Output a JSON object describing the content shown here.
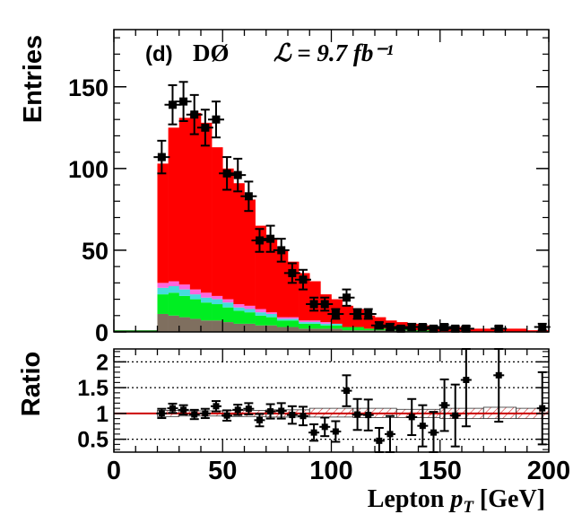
{
  "chart_data": {
    "type": "bar",
    "stacked": true,
    "top_panel": {
      "ylabel": "Entries",
      "ylim": [
        0,
        185
      ],
      "yticks": [
        "0",
        "50",
        "100",
        "150"
      ],
      "label_panel": "(d)",
      "label_experiment": "DØ",
      "label_lumi": "ℒ = 9.7 fb⁻¹",
      "bins": [
        [
          20,
          25
        ],
        [
          25,
          30
        ],
        [
          30,
          35
        ],
        [
          35,
          40
        ],
        [
          40,
          45
        ],
        [
          45,
          50
        ],
        [
          50,
          55
        ],
        [
          55,
          60
        ],
        [
          60,
          65
        ],
        [
          65,
          70
        ],
        [
          70,
          75
        ],
        [
          75,
          80
        ],
        [
          80,
          85
        ],
        [
          85,
          90
        ],
        [
          90,
          95
        ],
        [
          95,
          100
        ],
        [
          100,
          105
        ],
        [
          105,
          110
        ],
        [
          110,
          115
        ],
        [
          115,
          120
        ],
        [
          120,
          125
        ],
        [
          125,
          130
        ],
        [
          130,
          135
        ],
        [
          135,
          140
        ],
        [
          140,
          145
        ],
        [
          145,
          150
        ],
        [
          150,
          155
        ],
        [
          155,
          160
        ],
        [
          160,
          165
        ],
        [
          165,
          170
        ],
        [
          170,
          175
        ],
        [
          175,
          180
        ],
        [
          180,
          185
        ],
        [
          185,
          190
        ],
        [
          190,
          195
        ],
        [
          195,
          200
        ]
      ],
      "series": [
        {
          "color": "#7f6f5f",
          "values": [
            11,
            10,
            9,
            8,
            7,
            7,
            6,
            5,
            5,
            4,
            4,
            3,
            3,
            2,
            2,
            2,
            2,
            1,
            1,
            1,
            1,
            1,
            1,
            0,
            0,
            0,
            0,
            0,
            0,
            0,
            0,
            0,
            0,
            0,
            0,
            0
          ]
        },
        {
          "color": "#00ee22",
          "values": [
            12,
            14,
            13,
            12,
            11,
            10,
            9,
            8,
            7,
            6,
            5,
            4,
            4,
            3,
            3,
            2,
            2,
            2,
            2,
            1,
            1,
            1,
            1,
            1,
            1,
            0,
            0,
            0,
            0,
            0,
            0,
            0,
            0,
            0,
            0,
            0
          ]
        },
        {
          "color": "#44dddd",
          "values": [
            4,
            4,
            4,
            3,
            3,
            3,
            3,
            2,
            2,
            2,
            2,
            1,
            1,
            1,
            1,
            1,
            1,
            0,
            0,
            0,
            0,
            0,
            0,
            0,
            0,
            0,
            0,
            0,
            0,
            0,
            0,
            0,
            0,
            0,
            0,
            0
          ]
        },
        {
          "color": "#ff66dd",
          "values": [
            3,
            3,
            3,
            3,
            3,
            2,
            2,
            2,
            2,
            2,
            1,
            1,
            1,
            1,
            1,
            1,
            0,
            0,
            0,
            0,
            0,
            0,
            0,
            0,
            0,
            0,
            0,
            0,
            0,
            0,
            0,
            0,
            0,
            0,
            0,
            0
          ]
        },
        {
          "color": "#ff0000",
          "values": [
            73,
            94,
            102,
            108,
            104,
            91,
            80,
            74,
            65,
            51,
            45,
            41,
            34,
            29,
            24,
            17,
            15,
            13,
            11,
            8,
            7,
            5,
            4,
            4,
            3,
            3,
            3,
            3,
            2,
            2,
            2,
            2,
            2,
            2,
            1,
            1
          ]
        }
      ],
      "data_points": [
        {
          "x": 22,
          "y": 107,
          "err": 10
        },
        {
          "x": 27,
          "y": 139,
          "err": 12
        },
        {
          "x": 32,
          "y": 141,
          "err": 12
        },
        {
          "x": 37,
          "y": 133,
          "err": 12
        },
        {
          "x": 42,
          "y": 125,
          "err": 11
        },
        {
          "x": 47,
          "y": 130,
          "err": 11
        },
        {
          "x": 52,
          "y": 97,
          "err": 10
        },
        {
          "x": 57,
          "y": 96,
          "err": 10
        },
        {
          "x": 62,
          "y": 83,
          "err": 9
        },
        {
          "x": 67,
          "y": 56,
          "err": 7
        },
        {
          "x": 72,
          "y": 57,
          "err": 8
        },
        {
          "x": 77,
          "y": 50,
          "err": 7
        },
        {
          "x": 82,
          "y": 36,
          "err": 6
        },
        {
          "x": 87,
          "y": 32,
          "err": 6
        },
        {
          "x": 92,
          "y": 17,
          "err": 4
        },
        {
          "x": 97,
          "y": 17,
          "err": 4
        },
        {
          "x": 102,
          "y": 11,
          "err": 3
        },
        {
          "x": 107,
          "y": 21,
          "err": 5
        },
        {
          "x": 112,
          "y": 11,
          "err": 3
        },
        {
          "x": 117,
          "y": 11,
          "err": 3
        },
        {
          "x": 122,
          "y": 4,
          "err": 2
        },
        {
          "x": 127,
          "y": 3,
          "err": 2
        },
        {
          "x": 132,
          "y": 2,
          "err": 1.5
        },
        {
          "x": 137,
          "y": 3,
          "err": 2
        },
        {
          "x": 142,
          "y": 3,
          "err": 1.5
        },
        {
          "x": 147,
          "y": 2,
          "err": 1.5
        },
        {
          "x": 152,
          "y": 3,
          "err": 1.5
        },
        {
          "x": 157,
          "y": 2,
          "err": 1.5
        },
        {
          "x": 162,
          "y": 2,
          "err": 1.5
        },
        {
          "x": 177,
          "y": 2,
          "err": 1.5
        },
        {
          "x": 197,
          "y": 3,
          "err": 2
        }
      ]
    },
    "ratio_panel": {
      "ylabel": "Ratio",
      "ylim": [
        0.25,
        2.25
      ],
      "yticks": [
        "0.5",
        "1",
        "1.5",
        "2"
      ],
      "reference_line": 1,
      "dotted_lines": [
        0.5,
        1.5,
        2
      ],
      "points": [
        {
          "x": 22,
          "y": 1.0,
          "err": 0.09
        },
        {
          "x": 27,
          "y": 1.1,
          "err": 0.09
        },
        {
          "x": 32,
          "y": 1.07,
          "err": 0.09
        },
        {
          "x": 37,
          "y": 0.98,
          "err": 0.09
        },
        {
          "x": 42,
          "y": 1.0,
          "err": 0.09
        },
        {
          "x": 47,
          "y": 1.14,
          "err": 0.1
        },
        {
          "x": 52,
          "y": 0.96,
          "err": 0.1
        },
        {
          "x": 57,
          "y": 1.07,
          "err": 0.1
        },
        {
          "x": 62,
          "y": 1.09,
          "err": 0.11
        },
        {
          "x": 67,
          "y": 0.87,
          "err": 0.12
        },
        {
          "x": 72,
          "y": 1.04,
          "err": 0.14
        },
        {
          "x": 77,
          "y": 1.05,
          "err": 0.15
        },
        {
          "x": 82,
          "y": 0.97,
          "err": 0.17
        },
        {
          "x": 87,
          "y": 0.95,
          "err": 0.18
        },
        {
          "x": 92,
          "y": 0.63,
          "err": 0.16
        },
        {
          "x": 97,
          "y": 0.74,
          "err": 0.18
        },
        {
          "x": 102,
          "y": 0.65,
          "err": 0.2
        },
        {
          "x": 107,
          "y": 1.44,
          "err": 0.3
        },
        {
          "x": 112,
          "y": 0.98,
          "err": 0.3
        },
        {
          "x": 117,
          "y": 0.97,
          "err": 0.3
        },
        {
          "x": 122,
          "y": 0.47,
          "err": 0.25
        },
        {
          "x": 127,
          "y": 0.6,
          "err": 0.35
        },
        {
          "x": 137,
          "y": 0.93,
          "err": 0.35
        },
        {
          "x": 142,
          "y": 0.76,
          "err": 0.4
        },
        {
          "x": 147,
          "y": 0.63,
          "err": 0.4
        },
        {
          "x": 152,
          "y": 1.16,
          "err": 0.5
        },
        {
          "x": 157,
          "y": 0.96,
          "err": 0.6
        },
        {
          "x": 162,
          "y": 1.65,
          "err": 0.9
        },
        {
          "x": 177,
          "y": 1.74,
          "err": 0.9
        },
        {
          "x": 197,
          "y": 1.1,
          "err": 0.7
        }
      ],
      "syst_band": [
        {
          "x0": 20,
          "x1": 30,
          "lo": 0.94,
          "hi": 1.06
        },
        {
          "x0": 30,
          "x1": 50,
          "lo": 0.95,
          "hi": 1.05
        },
        {
          "x0": 50,
          "x1": 70,
          "lo": 0.94,
          "hi": 1.06
        },
        {
          "x0": 70,
          "x1": 90,
          "lo": 0.93,
          "hi": 1.07
        },
        {
          "x0": 90,
          "x1": 110,
          "lo": 0.93,
          "hi": 1.1
        },
        {
          "x0": 110,
          "x1": 130,
          "lo": 0.92,
          "hi": 1.1
        },
        {
          "x0": 130,
          "x1": 150,
          "lo": 0.92,
          "hi": 1.08
        },
        {
          "x0": 150,
          "x1": 170,
          "lo": 0.9,
          "hi": 1.1
        },
        {
          "x0": 170,
          "x1": 185,
          "lo": 0.9,
          "hi": 1.12
        },
        {
          "x0": 185,
          "x1": 200,
          "lo": 0.9,
          "hi": 1.1
        }
      ]
    },
    "x_axis": {
      "xlim": [
        0,
        200
      ],
      "xticks": [
        "0",
        "50",
        "100",
        "150",
        "200"
      ],
      "xlabel_main": "Lepton ",
      "xlabel_var": "p",
      "xlabel_sub": "T",
      "xlabel_unit": " [GeV]"
    },
    "colors": {
      "data": "#000000",
      "reference": "#cc0000",
      "band_hatch": "#cc3333"
    }
  }
}
